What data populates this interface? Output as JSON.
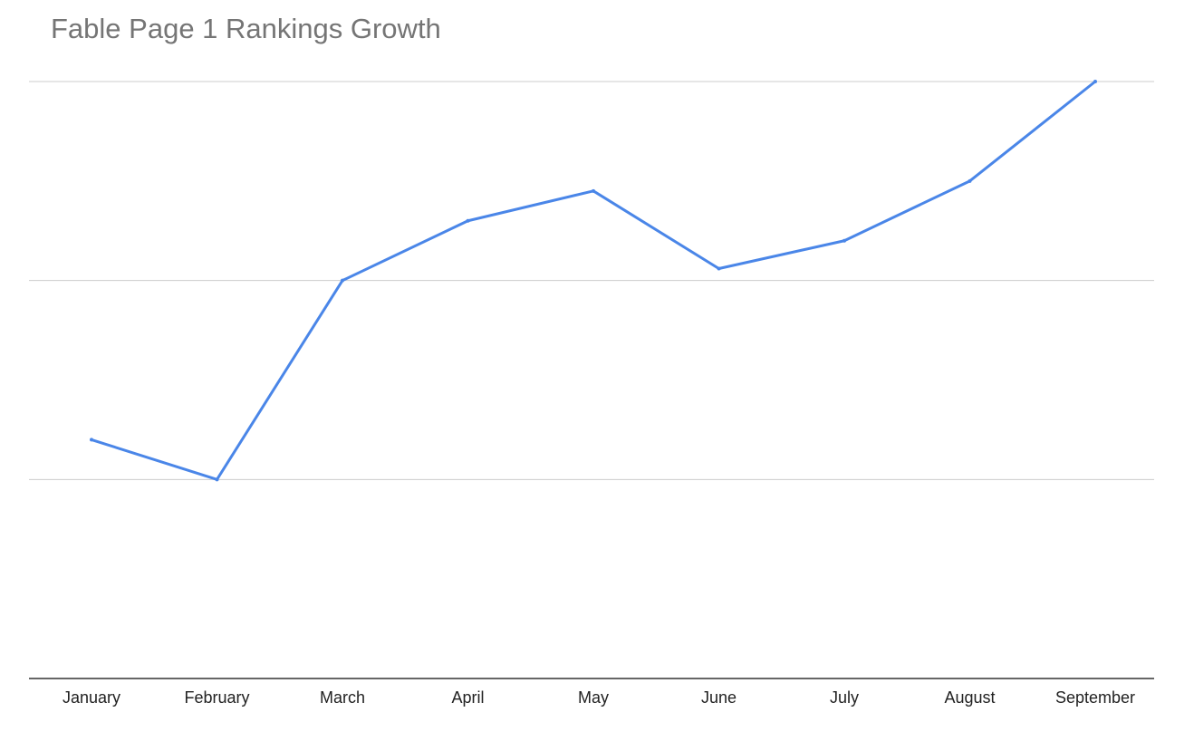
{
  "chart_data": {
    "type": "line",
    "title": "Fable Page 1 Rankings Growth",
    "xlabel": "",
    "ylabel": "",
    "categories": [
      "January",
      "February",
      "March",
      "April",
      "May",
      "June",
      "July",
      "August",
      "September"
    ],
    "series": [
      {
        "values": [
          1.2,
          1.0,
          2.0,
          2.3,
          2.45,
          2.06,
          2.2,
          2.5,
          3.0
        ]
      }
    ],
    "ylim": [
      0,
      3
    ],
    "grid": true,
    "line_color": "#4a86e8"
  }
}
